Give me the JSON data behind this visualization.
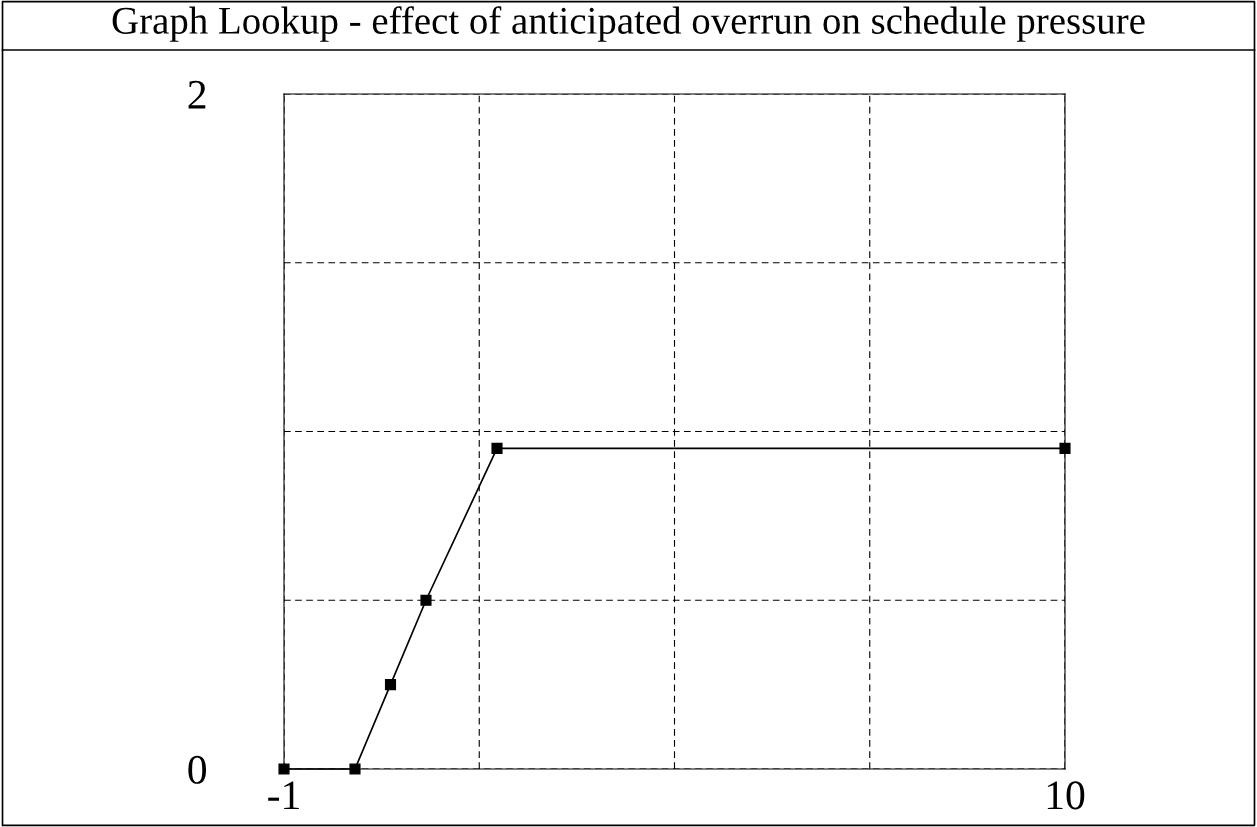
{
  "chart_data": {
    "type": "line",
    "title": "Graph Lookup - effect of anticipated overrun on schedule pressure",
    "x": [
      -1,
      0,
      0.5,
      1,
      2,
      10
    ],
    "series": [
      {
        "color": "#000000",
        "values": [
          0,
          0,
          0.25,
          0.5,
          0.95,
          0.95
        ]
      }
    ],
    "xlim": [
      -1,
      10
    ],
    "ylim": [
      0,
      2
    ],
    "xticks": [
      -1,
      {
        "value": 1.75,
        "label": null
      },
      {
        "value": 4.5,
        "label": null
      },
      {
        "value": 7.25,
        "label": null
      },
      10
    ],
    "yticks": [
      0,
      {
        "value": 0.5,
        "label": null
      },
      {
        "value": 1,
        "label": null
      },
      {
        "value": 1.5,
        "label": null
      },
      2
    ],
    "grid": true,
    "marker": "square",
    "line_style": "solid"
  }
}
